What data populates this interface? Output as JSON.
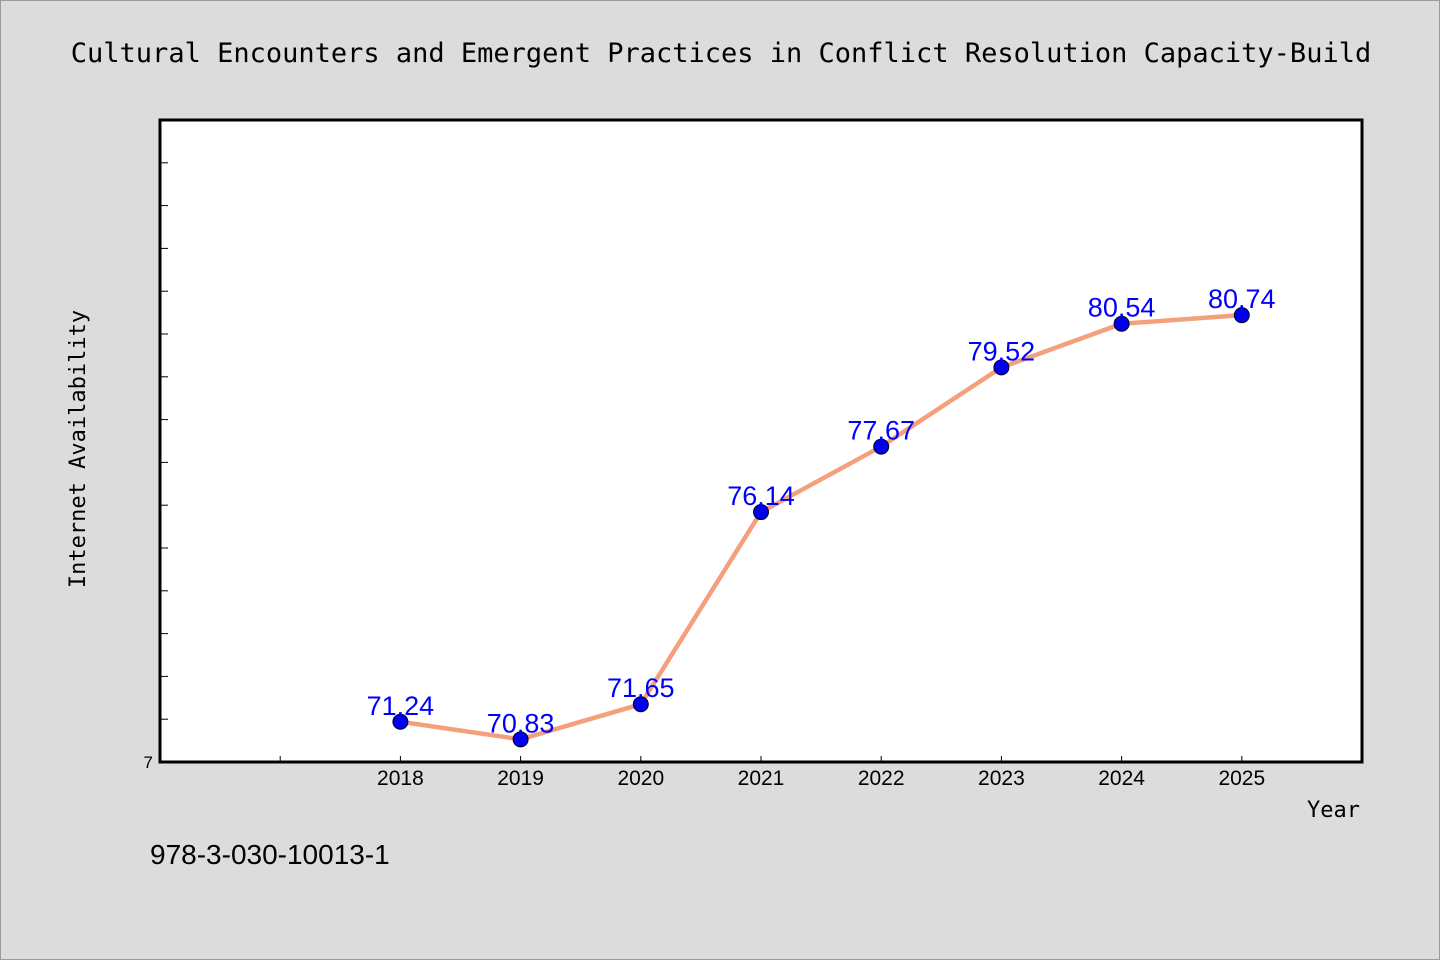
{
  "chart_data": {
    "type": "line",
    "title": "Cultural Encounters and Emergent Practices in Conflict Resolution Capacity-Build",
    "xlabel": "Year",
    "ylabel": "Internet Availability",
    "categories": [
      "2018",
      "2019",
      "2020",
      "2021",
      "2022",
      "2023",
      "2024",
      "2025"
    ],
    "series": [
      {
        "values": [
          71.24,
          70.83,
          71.65,
          76.14,
          77.67,
          79.52,
          80.54,
          80.74
        ],
        "labels": [
          "71.24",
          "70.83",
          "71.65",
          "76.14",
          "77.67",
          "79.52",
          "80.54",
          "80.74"
        ]
      }
    ],
    "ylim": [
      70.3,
      85.3
    ],
    "y_tick_labels": [
      "7"
    ],
    "x_slots": 10,
    "grid": false,
    "legend": "none",
    "colors": {
      "line": "#f4a07c",
      "marker": "#0000ee",
      "data_label": "#0000ff",
      "plot_bg": "#ffffff",
      "page_bg": "#dcdcdc"
    }
  },
  "footer": {
    "isbn": "978-3-030-10013-1"
  }
}
